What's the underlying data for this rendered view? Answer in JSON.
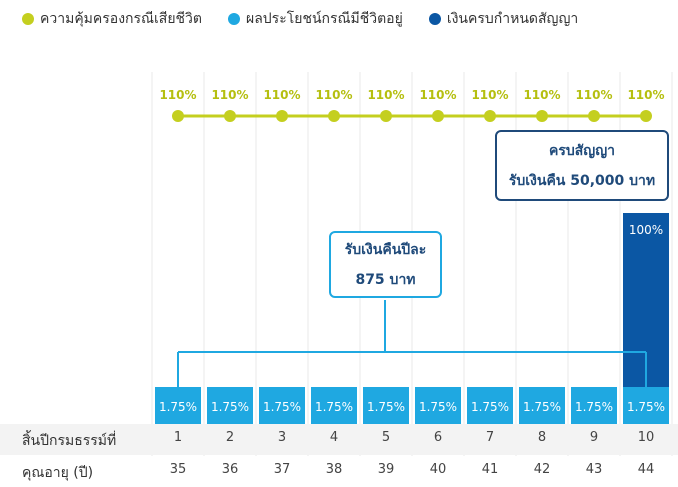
{
  "legend": [
    {
      "label": "ความคุ้มครองกรณีเสียชีวิต",
      "color": "#c4cf1f"
    },
    {
      "label": "ผลประโยชน์กรณีมีชีวิตอยู่",
      "color": "#1fa8e1"
    },
    {
      "label": "เงินครบกำหนดสัญญา",
      "color": "#0b57a4"
    }
  ],
  "callouts": {
    "annual": {
      "line1": "รับเงินคืนปีละ",
      "line2": "875 บาท"
    },
    "maturity": {
      "line1": "ครบสัญญา",
      "line2": "รับเงินคืน 50,000 บาท"
    }
  },
  "table": {
    "row1_label": "สิ้นปีกรมธรรม์ที่",
    "row2_label": "คุณอายุ (ปี)",
    "years": [
      "1",
      "2",
      "3",
      "4",
      "5",
      "6",
      "7",
      "8",
      "9",
      "10"
    ],
    "ages": [
      "35",
      "36",
      "37",
      "38",
      "39",
      "40",
      "41",
      "42",
      "43",
      "44"
    ]
  },
  "chart_data": {
    "type": "bar",
    "categories": [
      "1",
      "2",
      "3",
      "4",
      "5",
      "6",
      "7",
      "8",
      "9",
      "10"
    ],
    "series": [
      {
        "name": "ความคุ้มครองกรณีเสียชีวิต",
        "kind": "line",
        "values": [
          110,
          110,
          110,
          110,
          110,
          110,
          110,
          110,
          110,
          110
        ],
        "labels": [
          "110%",
          "110%",
          "110%",
          "110%",
          "110%",
          "110%",
          "110%",
          "110%",
          "110%",
          "110%"
        ],
        "color": "#c4cf1f"
      },
      {
        "name": "ผลประโยชน์กรณีมีชีวิตอยู่",
        "kind": "bar",
        "values": [
          1.75,
          1.75,
          1.75,
          1.75,
          1.75,
          1.75,
          1.75,
          1.75,
          1.75,
          1.75
        ],
        "labels": [
          "1.75%",
          "1.75%",
          "1.75%",
          "1.75%",
          "1.75%",
          "1.75%",
          "1.75%",
          "1.75%",
          "1.75%",
          "1.75%"
        ],
        "color": "#1fa8e1"
      },
      {
        "name": "เงินครบกำหนดสัญญา",
        "kind": "bar",
        "values": [
          null,
          null,
          null,
          null,
          null,
          null,
          null,
          null,
          null,
          100
        ],
        "labels": [
          "",
          "",
          "",
          "",
          "",
          "",
          "",
          "",
          "",
          "100%"
        ],
        "color": "#0b57a4"
      }
    ],
    "legend_position": "top",
    "grid": "vertical"
  }
}
